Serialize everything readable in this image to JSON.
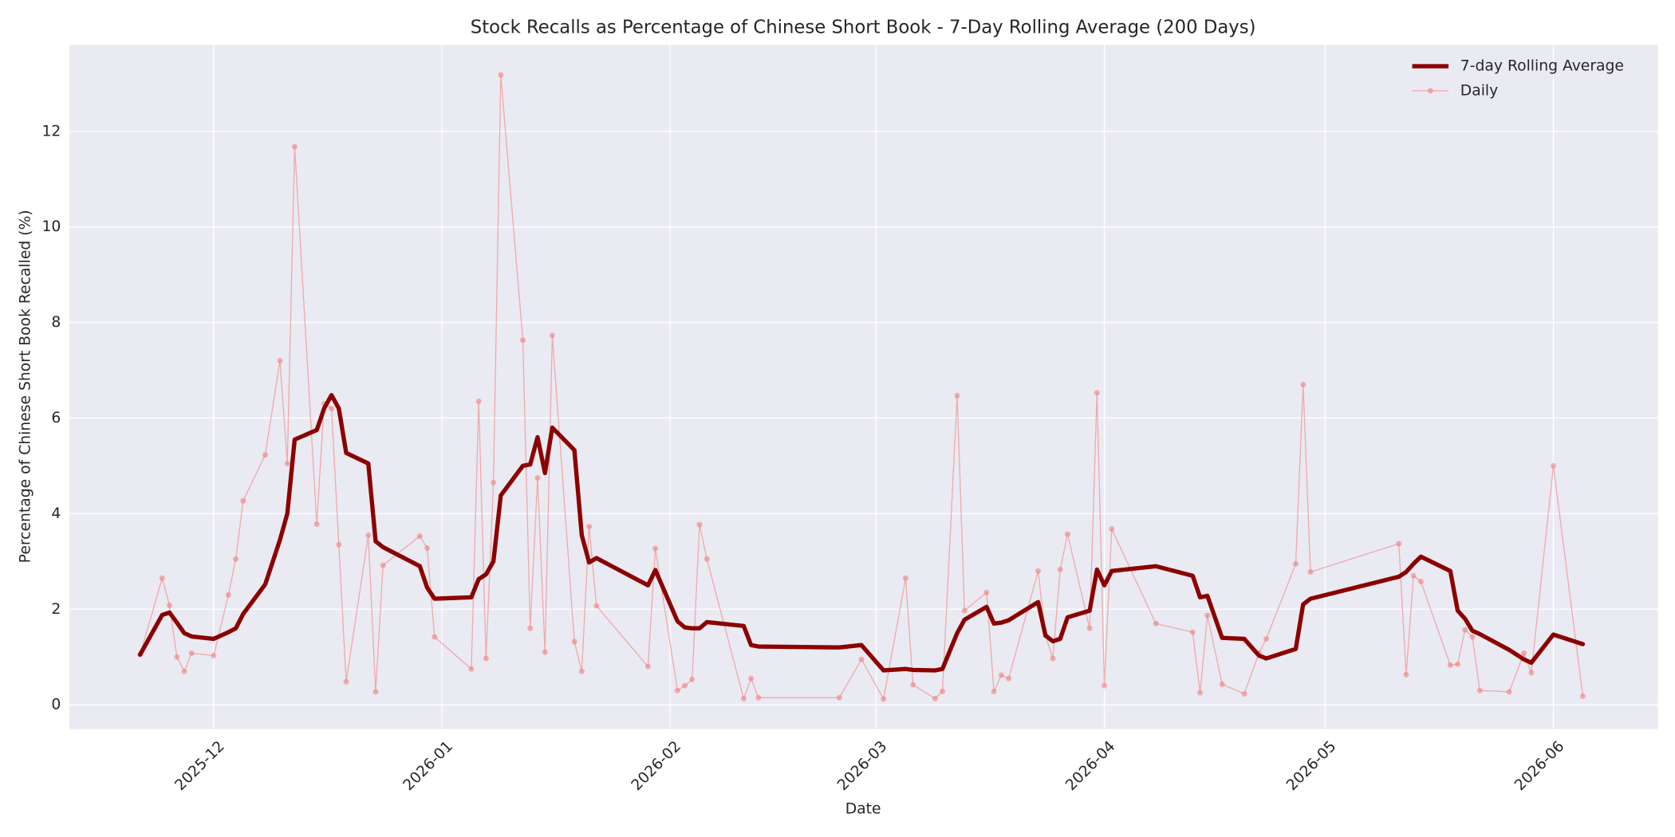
{
  "chart_data": {
    "type": "line",
    "title": "Stock Recalls as Percentage of Chinese Short Book - 7-Day Rolling Average (200 Days)",
    "x_label": "Date",
    "y_label": "Percentage of Chinese Short Book Recalled (%)",
    "x": [
      -10,
      -7,
      -6,
      -5,
      -4,
      -3,
      0,
      2,
      3,
      4,
      7,
      9,
      10,
      11,
      14,
      15,
      16,
      17,
      18,
      21,
      22,
      23,
      28,
      29,
      30,
      35,
      36,
      37,
      38,
      39,
      42,
      43,
      44,
      45,
      46,
      49,
      50,
      51,
      52,
      59,
      60,
      63,
      64,
      65,
      66,
      67,
      72,
      73,
      74,
      85,
      88,
      91,
      94,
      95,
      98,
      99,
      101,
      102,
      105,
      106,
      107,
      108,
      112,
      113,
      114,
      115,
      116,
      119,
      120,
      121,
      122,
      128,
      133,
      134,
      135,
      137,
      140,
      142,
      143,
      147,
      148,
      149,
      161,
      162,
      163,
      164,
      168,
      169,
      170,
      171,
      172,
      176,
      178,
      179,
      182,
      186
    ],
    "series": [
      {
        "name": "7-day Rolling Average",
        "color": "#8b0000",
        "linewidth": 4,
        "marker": false,
        "values": [
          1.05,
          1.88,
          1.93,
          1.72,
          1.5,
          1.43,
          1.38,
          1.52,
          1.6,
          1.9,
          2.52,
          3.45,
          4.0,
          5.55,
          5.75,
          6.2,
          6.48,
          6.2,
          5.27,
          5.05,
          3.42,
          3.3,
          2.9,
          2.45,
          2.22,
          2.25,
          2.63,
          2.73,
          3.0,
          4.38,
          5.0,
          5.03,
          5.6,
          4.85,
          5.8,
          5.33,
          3.55,
          2.98,
          3.07,
          2.5,
          2.82,
          1.75,
          1.62,
          1.6,
          1.6,
          1.73,
          1.65,
          1.25,
          1.22,
          1.2,
          1.25,
          0.72,
          0.75,
          0.73,
          0.72,
          0.75,
          1.5,
          1.78,
          2.05,
          1.7,
          1.72,
          1.77,
          2.15,
          1.45,
          1.33,
          1.38,
          1.83,
          1.97,
          2.83,
          2.5,
          2.8,
          2.9,
          2.7,
          2.25,
          2.28,
          1.4,
          1.38,
          1.03,
          0.97,
          1.17,
          2.1,
          2.22,
          2.68,
          2.78,
          2.95,
          3.1,
          2.8,
          1.97,
          1.8,
          1.55,
          1.48,
          1.15,
          0.95,
          0.88,
          1.47,
          1.27
        ]
      },
      {
        "name": "Daily",
        "color": "#f08080",
        "linewidth": 1,
        "marker": true,
        "values": [
          1.05,
          2.65,
          2.08,
          1.0,
          0.7,
          1.08,
          1.03,
          2.3,
          3.05,
          4.27,
          5.23,
          7.2,
          5.05,
          11.68,
          3.78,
          6.3,
          6.2,
          3.35,
          0.48,
          3.55,
          0.27,
          2.92,
          3.53,
          3.28,
          1.42,
          0.75,
          6.35,
          0.97,
          4.65,
          13.18,
          7.63,
          1.6,
          4.75,
          1.1,
          7.73,
          1.32,
          0.7,
          3.73,
          2.07,
          0.8,
          3.27,
          0.3,
          0.4,
          0.53,
          3.77,
          3.05,
          0.13,
          0.55,
          0.15,
          0.15,
          0.95,
          0.12,
          2.65,
          0.42,
          0.13,
          0.28,
          6.47,
          1.97,
          2.35,
          0.28,
          0.62,
          0.55,
          2.8,
          1.45,
          0.97,
          2.83,
          3.57,
          1.6,
          6.53,
          0.4,
          3.68,
          1.7,
          1.52,
          0.25,
          1.87,
          0.43,
          0.23,
          1.08,
          1.38,
          2.95,
          6.7,
          2.78,
          3.37,
          0.63,
          2.7,
          2.58,
          0.83,
          0.85,
          1.57,
          1.42,
          0.3,
          0.27,
          1.08,
          0.67,
          5.0,
          0.18
        ]
      }
    ],
    "xlim": [
      -19.6,
      196.2
    ],
    "xticks": [
      {
        "value": 0,
        "label": "2025-12"
      },
      {
        "value": 31,
        "label": "2026-01"
      },
      {
        "value": 62,
        "label": "2026-02"
      },
      {
        "value": 90,
        "label": "2026-03"
      },
      {
        "value": 121,
        "label": "2026-04"
      },
      {
        "value": 151,
        "label": "2026-05"
      },
      {
        "value": 182,
        "label": "2026-06"
      }
    ],
    "ylim": [
      -0.51,
      13.81
    ],
    "yticks": [
      0,
      2,
      4,
      6,
      8,
      10,
      12
    ],
    "grid": true,
    "legend": "upper right"
  }
}
